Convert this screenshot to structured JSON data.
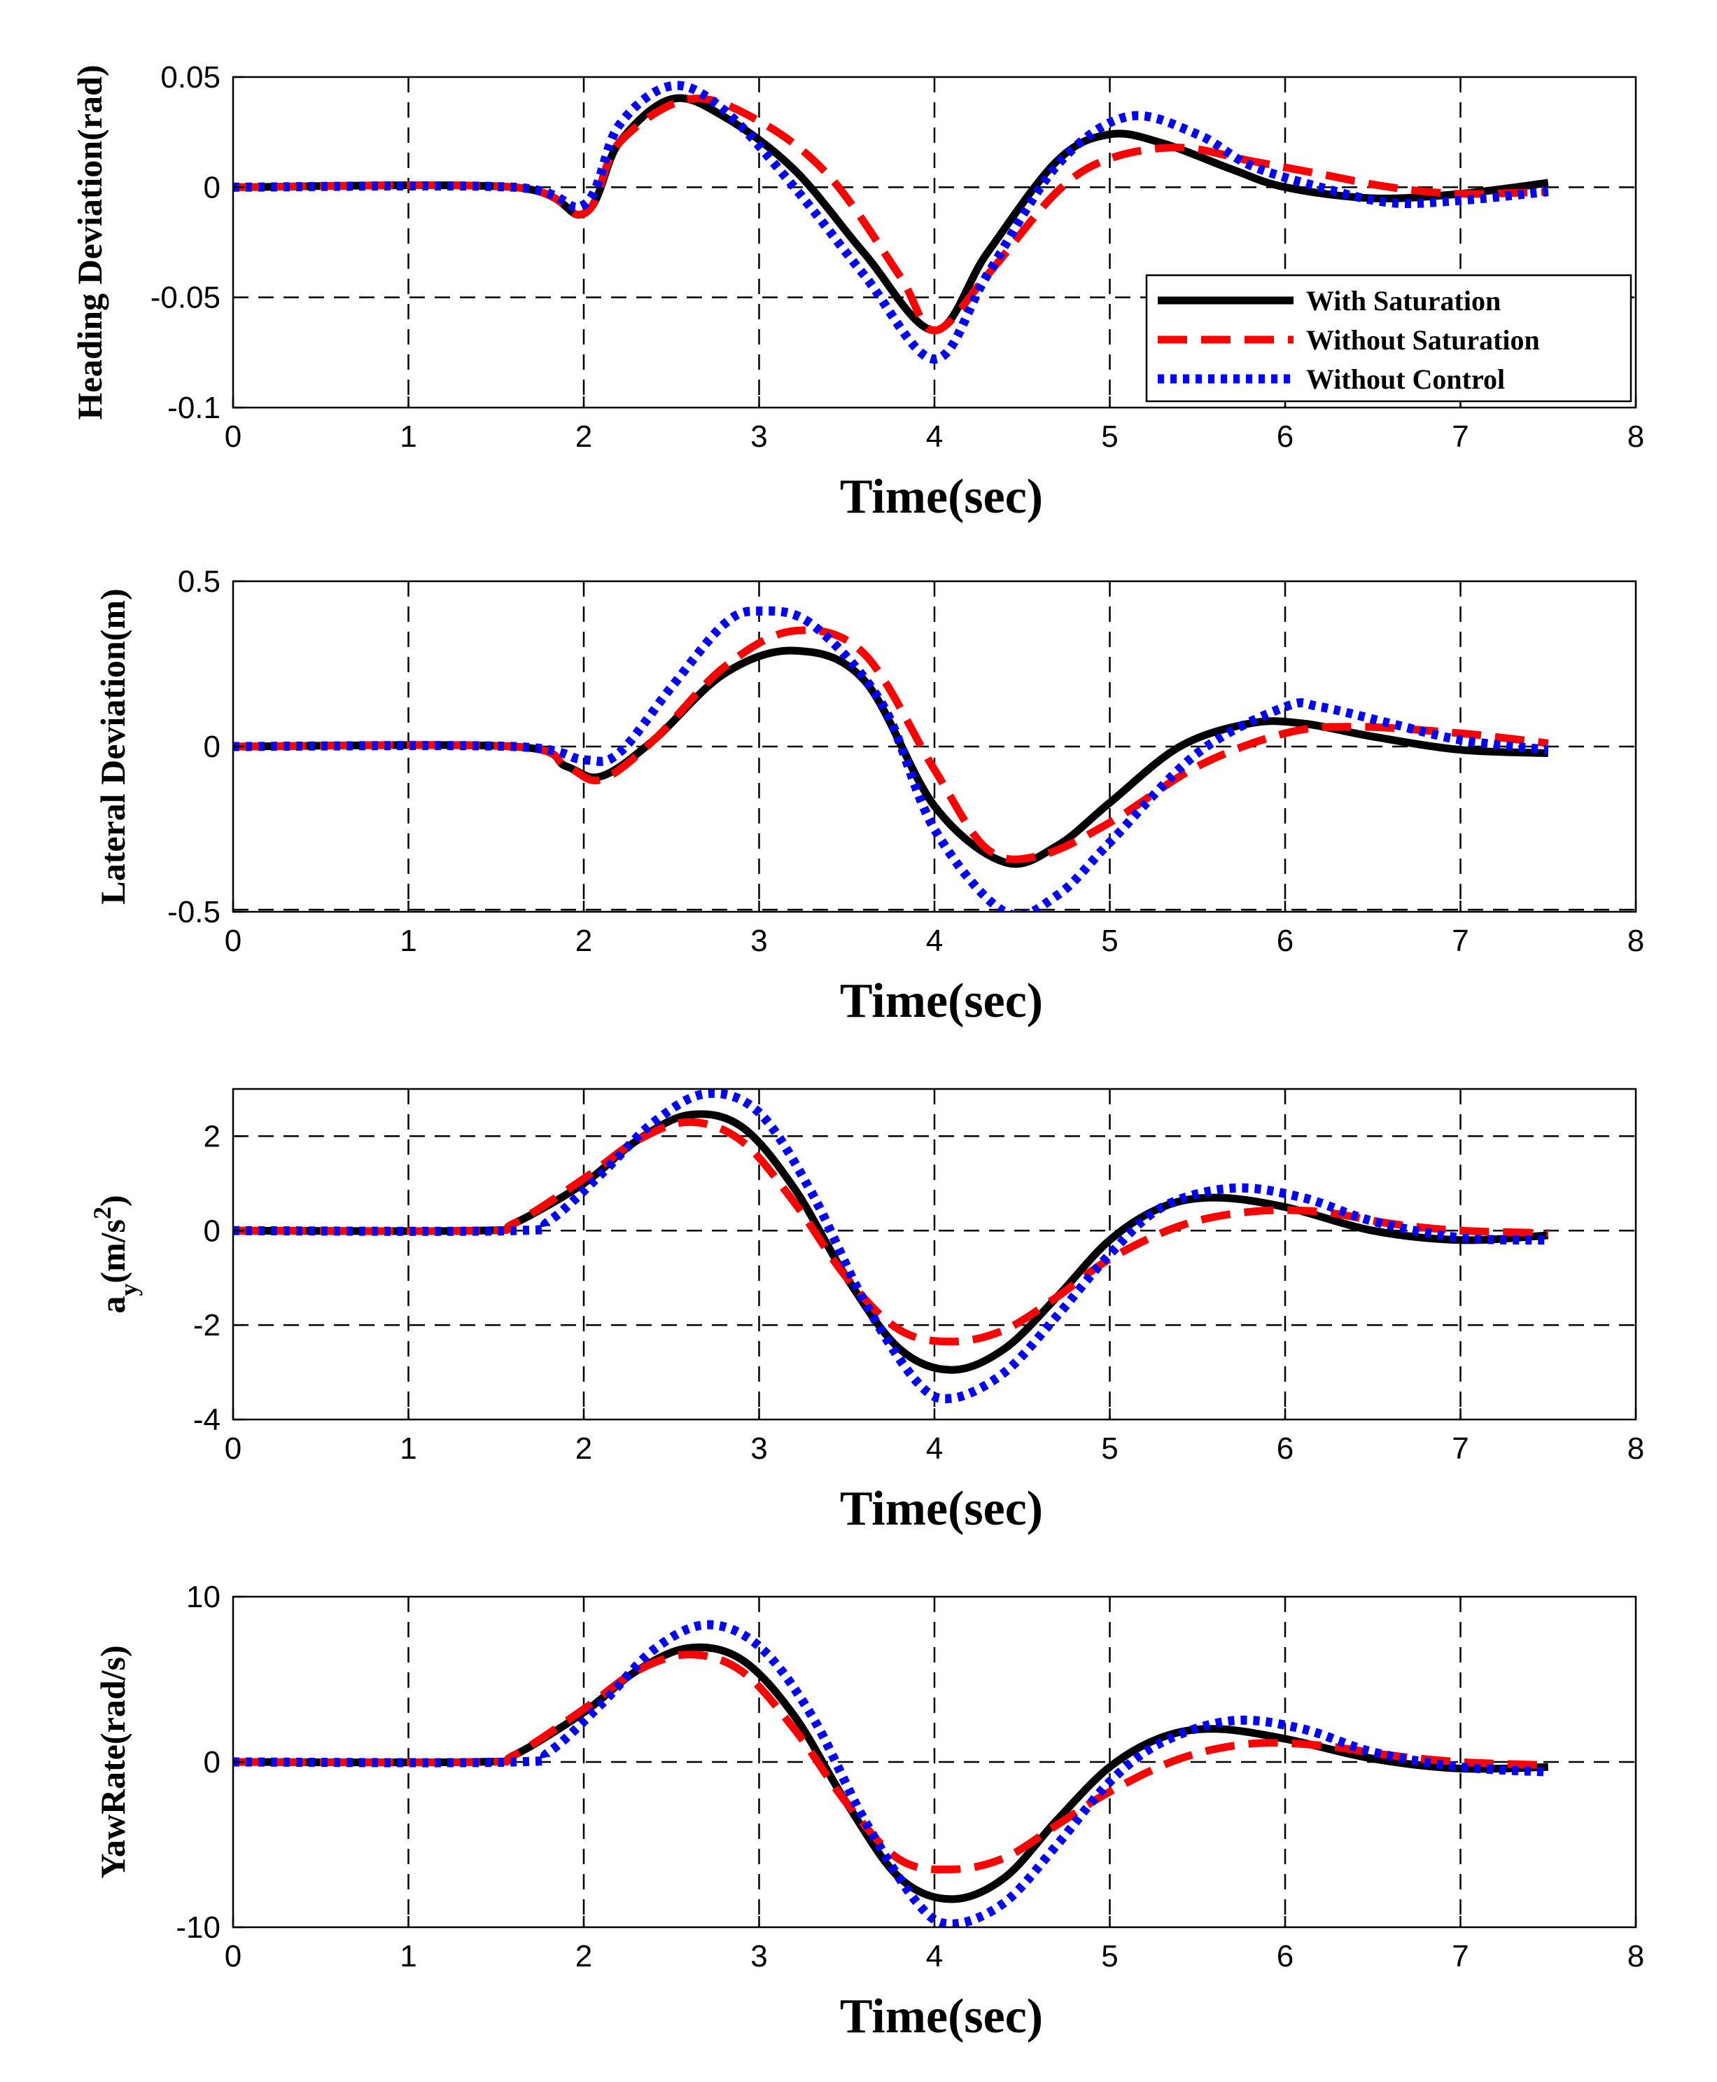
{
  "legend": [
    {
      "label": "With Saturation",
      "color": "#000000",
      "style": "solid"
    },
    {
      "label": "Without Saturation",
      "color": "#ff0000",
      "style": "dashed"
    },
    {
      "label": "Without Control",
      "color": "#0000ff",
      "style": "dotted"
    }
  ],
  "chart_data": [
    {
      "type": "line",
      "title": "",
      "xlabel": "Time(sec)",
      "ylabel": "Heading Deviation(rad)",
      "xlim": [
        0,
        8
      ],
      "ylim": [
        -0.1,
        0.05
      ],
      "xticks": [
        0,
        1,
        2,
        3,
        4,
        5,
        6,
        7,
        8
      ],
      "yticks": [
        -0.1,
        -0.05,
        0,
        0.05
      ],
      "xtick_labels": [
        "0",
        "1",
        "2",
        "3",
        "4",
        "5",
        "6",
        "7",
        "8"
      ],
      "ytick_labels": [
        "-0.1",
        "-0.05",
        "0",
        "0.05"
      ],
      "legend_position": "bottom-right",
      "grid": true,
      "series": [
        {
          "name": "With Saturation",
          "color": "#000000",
          "style": "solid",
          "x": [
            0,
            1.6,
            2,
            2.2,
            2.5,
            2.8,
            3.2,
            3.6,
            4,
            4.3,
            4.7,
            5,
            5.3,
            5.7,
            6,
            6.5,
            7,
            7.5
          ],
          "y": [
            0,
            0,
            -0.012,
            0.02,
            0.04,
            0.032,
            0.008,
            -0.03,
            -0.065,
            -0.03,
            0.012,
            0.024,
            0.02,
            0.008,
            0,
            -0.005,
            -0.003,
            0.002
          ]
        },
        {
          "name": "Without Saturation",
          "color": "#ff0000",
          "style": "dashed",
          "x": [
            0,
            1.6,
            2,
            2.2,
            2.6,
            3,
            3.4,
            3.8,
            4,
            4.3,
            4.7,
            5,
            5.4,
            5.8,
            6.2,
            6.6,
            7,
            7.5
          ],
          "y": [
            0,
            0,
            -0.012,
            0.02,
            0.04,
            0.03,
            0.005,
            -0.04,
            -0.065,
            -0.04,
            -0.002,
            0.013,
            0.018,
            0.012,
            0.006,
            0,
            -0.003,
            -0.002
          ]
        },
        {
          "name": "Without Control",
          "color": "#0000ff",
          "style": "dotted",
          "x": [
            0,
            1.6,
            2,
            2.2,
            2.5,
            2.8,
            3.2,
            3.6,
            4,
            4.3,
            4.7,
            5.1,
            5.5,
            5.8,
            6.2,
            6.6,
            7,
            7.5
          ],
          "y": [
            0,
            0,
            -0.008,
            0.028,
            0.046,
            0.035,
            0.0,
            -0.04,
            -0.078,
            -0.04,
            0.01,
            0.032,
            0.024,
            0.01,
            0.0,
            -0.007,
            -0.006,
            -0.002
          ]
        }
      ]
    },
    {
      "type": "line",
      "title": "",
      "xlabel": "Time(sec)",
      "ylabel": "Lateral Deviation(m)",
      "xlim": [
        0,
        8
      ],
      "ylim": [
        -0.5,
        0.5
      ],
      "xticks": [
        0,
        1,
        2,
        3,
        4,
        5,
        6,
        7,
        8
      ],
      "yticks": [
        -0.5,
        0,
        0.5
      ],
      "xtick_labels": [
        "0",
        "1",
        "2",
        "3",
        "4",
        "5",
        "6",
        "7",
        "8"
      ],
      "ytick_labels": [
        "-0.5",
        "0",
        "0.5"
      ],
      "grid": true,
      "series": [
        {
          "name": "With Saturation",
          "color": "#000000",
          "style": "solid",
          "x": [
            0,
            1.6,
            1.9,
            2.1,
            2.4,
            2.8,
            3.2,
            3.6,
            4,
            4.4,
            4.7,
            5,
            5.4,
            5.8,
            6.1,
            6.5,
            7,
            7.5
          ],
          "y": [
            0,
            0,
            -0.06,
            -0.09,
            0.02,
            0.22,
            0.29,
            0.2,
            -0.18,
            -0.35,
            -0.3,
            -0.17,
            0.0,
            0.07,
            0.07,
            0.03,
            -0.01,
            -0.02
          ]
        },
        {
          "name": "Without Saturation",
          "color": "#ff0000",
          "style": "dashed",
          "x": [
            0,
            1.6,
            1.9,
            2.1,
            2.4,
            2.8,
            3.2,
            3.6,
            4,
            4.3,
            4.6,
            5,
            5.5,
            6,
            6.4,
            7,
            7.5
          ],
          "y": [
            0,
            0,
            -0.06,
            -0.1,
            0.02,
            0.24,
            0.35,
            0.28,
            -0.07,
            -0.31,
            -0.33,
            -0.23,
            -0.06,
            0.04,
            0.06,
            0.04,
            0.01
          ]
        },
        {
          "name": "Without Control",
          "color": "#0000ff",
          "style": "dotted",
          "x": [
            0,
            1.6,
            2,
            2.2,
            2.5,
            2.8,
            3,
            3.3,
            3.7,
            4,
            4.4,
            4.7,
            5,
            5.5,
            6,
            6.2,
            6.6,
            7,
            7.5
          ],
          "y": [
            0,
            0,
            -0.04,
            -0.02,
            0.18,
            0.37,
            0.41,
            0.37,
            0.13,
            -0.25,
            -0.5,
            -0.45,
            -0.29,
            -0.02,
            0.12,
            0.12,
            0.07,
            0.02,
            -0.01
          ]
        }
      ]
    },
    {
      "type": "line",
      "title": "",
      "xlabel": "Time(sec)",
      "ylabel": "a",
      "ylabel_subscript": "y",
      "ylabel_unit": "(m/s",
      "ylabel_superscript": "2",
      "ylabel_close": ")",
      "xlim": [
        0,
        8
      ],
      "ylim": [
        -4,
        3
      ],
      "xticks": [
        0,
        1,
        2,
        3,
        4,
        5,
        6,
        7,
        8
      ],
      "yticks": [
        -4,
        -2,
        0,
        2
      ],
      "xtick_labels": [
        "0",
        "1",
        "2",
        "3",
        "4",
        "5",
        "6",
        "7",
        "8"
      ],
      "ytick_labels": [
        "-4",
        "-2",
        "0",
        "2"
      ],
      "gridlines_y": [
        -2,
        0,
        2
      ],
      "grid": true,
      "series": [
        {
          "name": "With Saturation",
          "color": "#000000",
          "style": "solid",
          "x": [
            0,
            1.4,
            1.6,
            2,
            2.3,
            2.6,
            2.9,
            3.2,
            3.5,
            3.8,
            4.1,
            4.4,
            4.7,
            5,
            5.3,
            5.6,
            6,
            6.5,
            7,
            7.5
          ],
          "y": [
            0,
            0,
            0.15,
            1.0,
            1.9,
            2.45,
            2.2,
            0.9,
            -1.0,
            -2.5,
            -2.95,
            -2.5,
            -1.4,
            -0.2,
            0.5,
            0.7,
            0.5,
            0.0,
            -0.2,
            -0.1
          ]
        },
        {
          "name": "Without Saturation",
          "color": "#ff0000",
          "style": "dashed",
          "x": [
            0,
            1.4,
            1.6,
            2,
            2.3,
            2.6,
            2.9,
            3.2,
            3.5,
            3.8,
            4.1,
            4.4,
            4.7,
            5,
            5.4,
            5.8,
            6.2,
            6.6,
            7,
            7.5
          ],
          "y": [
            0,
            0,
            0.15,
            1.1,
            1.9,
            2.3,
            1.9,
            0.6,
            -1.0,
            -2.1,
            -2.35,
            -2.1,
            -1.4,
            -0.6,
            0.1,
            0.4,
            0.4,
            0.15,
            0.0,
            -0.05
          ]
        },
        {
          "name": "Without Control",
          "color": "#0000ff",
          "style": "dotted",
          "x": [
            0,
            1.6,
            1.8,
            2.1,
            2.4,
            2.7,
            3,
            3.3,
            3.6,
            3.9,
            4.1,
            4.4,
            4.7,
            5,
            5.3,
            5.7,
            6.1,
            6.5,
            7,
            7.5
          ],
          "y": [
            0,
            0,
            0.2,
            1.2,
            2.3,
            2.9,
            2.5,
            0.8,
            -1.5,
            -3.2,
            -3.55,
            -3.0,
            -1.8,
            -0.5,
            0.5,
            0.9,
            0.7,
            0.2,
            -0.15,
            -0.2
          ]
        }
      ]
    },
    {
      "type": "line",
      "title": "",
      "xlabel": "Time(sec)",
      "ylabel": "YawRate(rad/s)",
      "xlim": [
        0,
        8
      ],
      "ylim": [
        -10,
        10
      ],
      "xticks": [
        0,
        1,
        2,
        3,
        4,
        5,
        6,
        7,
        8
      ],
      "yticks": [
        -10,
        0,
        10
      ],
      "xtick_labels": [
        "0",
        "1",
        "2",
        "3",
        "4",
        "5",
        "6",
        "7",
        "8"
      ],
      "ytick_labels": [
        "-10",
        "0",
        "10"
      ],
      "grid": true,
      "series": [
        {
          "name": "With Saturation",
          "color": "#000000",
          "style": "solid",
          "x": [
            0,
            1.4,
            1.6,
            2,
            2.3,
            2.6,
            2.9,
            3.2,
            3.5,
            3.8,
            4.1,
            4.4,
            4.7,
            5,
            5.3,
            5.6,
            6,
            6.5,
            7,
            7.5
          ],
          "y": [
            0,
            0,
            0.4,
            3.0,
            5.5,
            6.9,
            6.2,
            2.8,
            -2.5,
            -7.0,
            -8.3,
            -7.0,
            -3.5,
            -0.3,
            1.5,
            2.0,
            1.4,
            0.2,
            -0.4,
            -0.3
          ]
        },
        {
          "name": "Without Saturation",
          "color": "#ff0000",
          "style": "dashed",
          "x": [
            0,
            1.4,
            1.6,
            2,
            2.3,
            2.6,
            2.9,
            3.2,
            3.5,
            3.8,
            4.1,
            4.4,
            4.7,
            5,
            5.4,
            5.8,
            6.2,
            6.6,
            7,
            7.5
          ],
          "y": [
            0,
            0,
            0.4,
            3.2,
            5.5,
            6.5,
            5.5,
            2.0,
            -2.5,
            -5.9,
            -6.5,
            -5.8,
            -3.8,
            -1.8,
            0.2,
            1.1,
            1.0,
            0.4,
            0.0,
            -0.2
          ]
        },
        {
          "name": "Without Control",
          "color": "#0000ff",
          "style": "dotted",
          "x": [
            0,
            1.6,
            1.8,
            2.1,
            2.4,
            2.7,
            3,
            3.3,
            3.6,
            3.9,
            4.1,
            4.4,
            4.7,
            5,
            5.3,
            5.7,
            6.1,
            6.5,
            7,
            7.5
          ],
          "y": [
            0,
            0,
            0.6,
            3.5,
            6.8,
            8.3,
            7.0,
            2.8,
            -3.5,
            -8.5,
            -9.8,
            -8.5,
            -5.0,
            -1.2,
            1.2,
            2.5,
            2.0,
            0.6,
            -0.3,
            -0.6
          ]
        }
      ]
    }
  ]
}
